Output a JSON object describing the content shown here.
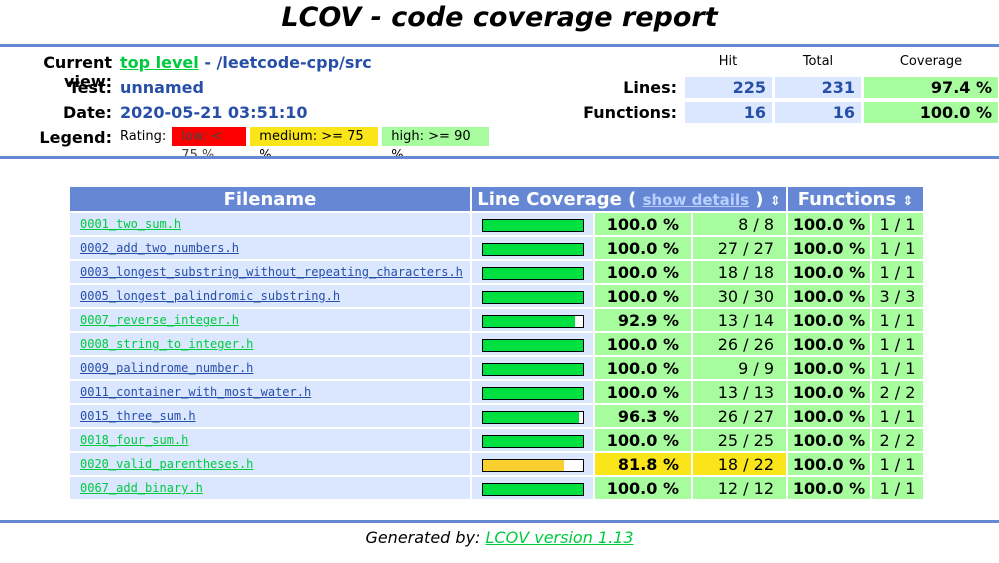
{
  "page": {
    "title": "LCOV - code coverage report"
  },
  "header": {
    "current_view_label": "Current view:",
    "current_view_link": "top level",
    "current_view_path": "- /leetcode-cpp/src",
    "test_label": "Test:",
    "test_value": "unnamed",
    "date_label": "Date:",
    "date_value": "2020-05-21 03:51:10",
    "legend_label": "Legend:",
    "rating_label": "Rating:",
    "rating_low": "low: < 75 %",
    "rating_medium": "medium: >= 75 %",
    "rating_high": "high: >= 90 %"
  },
  "summary": {
    "col_hit": "Hit",
    "col_total": "Total",
    "col_coverage": "Coverage",
    "lines_label": "Lines:",
    "lines_hit": "225",
    "lines_total": "231",
    "lines_coverage": "97.4 %",
    "functions_label": "Functions:",
    "functions_hit": "16",
    "functions_total": "16",
    "functions_coverage": "100.0 %"
  },
  "table": {
    "col_filename": "Filename",
    "col_line_coverage": "Line Coverage (",
    "show_details": "show details",
    "col_line_coverage_end": ")",
    "col_functions": "Functions",
    "sort_icon": "⇕",
    "rows": [
      {
        "file": "0001_two_sum.h",
        "visited": true,
        "ratio": 1.0,
        "level": "hi",
        "pct": "100.0 %",
        "lines": "8 / 8",
        "fpct": "100.0 %",
        "funcs": "1 / 1"
      },
      {
        "file": "0002_add_two_numbers.h",
        "visited": false,
        "ratio": 1.0,
        "level": "hi",
        "pct": "100.0 %",
        "lines": "27 / 27",
        "fpct": "100.0 %",
        "funcs": "1 / 1"
      },
      {
        "file": "0003_longest_substring_without_repeating_characters.h",
        "visited": false,
        "ratio": 1.0,
        "level": "hi",
        "pct": "100.0 %",
        "lines": "18 / 18",
        "fpct": "100.0 %",
        "funcs": "1 / 1"
      },
      {
        "file": "0005_longest_palindromic_substring.h",
        "visited": false,
        "ratio": 1.0,
        "level": "hi",
        "pct": "100.0 %",
        "lines": "30 / 30",
        "fpct": "100.0 %",
        "funcs": "3 / 3"
      },
      {
        "file": "0007_reverse_integer.h",
        "visited": true,
        "ratio": 0.929,
        "level": "hi",
        "pct": "92.9 %",
        "lines": "13 / 14",
        "fpct": "100.0 %",
        "funcs": "1 / 1"
      },
      {
        "file": "0008_string_to_integer.h",
        "visited": true,
        "ratio": 1.0,
        "level": "hi",
        "pct": "100.0 %",
        "lines": "26 / 26",
        "fpct": "100.0 %",
        "funcs": "1 / 1"
      },
      {
        "file": "0009_palindrome_number.h",
        "visited": false,
        "ratio": 1.0,
        "level": "hi",
        "pct": "100.0 %",
        "lines": "9 / 9",
        "fpct": "100.0 %",
        "funcs": "1 / 1"
      },
      {
        "file": "0011_container_with_most_water.h",
        "visited": false,
        "ratio": 1.0,
        "level": "hi",
        "pct": "100.0 %",
        "lines": "13 / 13",
        "fpct": "100.0 %",
        "funcs": "2 / 2"
      },
      {
        "file": "0015_three_sum.h",
        "visited": false,
        "ratio": 0.963,
        "level": "hi",
        "pct": "96.3 %",
        "lines": "26 / 27",
        "fpct": "100.0 %",
        "funcs": "1 / 1"
      },
      {
        "file": "0018_four_sum.h",
        "visited": true,
        "ratio": 1.0,
        "level": "hi",
        "pct": "100.0 %",
        "lines": "25 / 25",
        "fpct": "100.0 %",
        "funcs": "2 / 2"
      },
      {
        "file": "0020_valid_parentheses.h",
        "visited": true,
        "ratio": 0.818,
        "level": "med",
        "pct": "81.8 %",
        "lines": "18 / 22",
        "fpct": "100.0 %",
        "funcs": "1 / 1"
      },
      {
        "file": "0067_add_binary.h",
        "visited": true,
        "ratio": 1.0,
        "level": "hi",
        "pct": "100.0 %",
        "lines": "12 / 12",
        "fpct": "100.0 %",
        "funcs": "1 / 1"
      }
    ]
  },
  "colors": {
    "hi_bar": "#00e040",
    "med_bar": "#f9d030"
  },
  "footer": {
    "prefix": "Generated by: ",
    "link": "LCOV version 1.13"
  }
}
